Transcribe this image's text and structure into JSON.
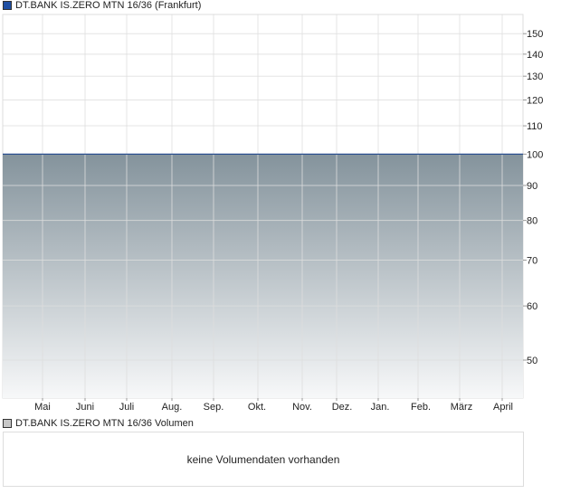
{
  "chart_data": {
    "type": "area",
    "title": "DT.BANK IS.ZERO MTN 16/36 (Frankfurt)",
    "legend_color": "#1f4fa3",
    "line_color": "#2a4f8f",
    "fill_top_color": "#84939c",
    "fill_bottom_color": "#f7f8f9",
    "y_scale": "log",
    "ylim": [
      44,
      160
    ],
    "y_ticks": [
      50,
      60,
      70,
      80,
      90,
      100,
      110,
      120,
      130,
      140,
      150
    ],
    "x_tick_labels": [
      "Mai",
      "Juni",
      "Juli",
      "Aug.",
      "Sep.",
      "Okt.",
      "Nov.",
      "Dez.",
      "Jan.",
      "Feb.",
      "März",
      "April"
    ],
    "series": [
      {
        "values": [
          100,
          100,
          100,
          100,
          100,
          100,
          100,
          100,
          100,
          100,
          100,
          100,
          100,
          100
        ]
      }
    ],
    "grid": true,
    "legend_position": "top-left"
  },
  "volume": {
    "legend": "DT.BANK IS.ZERO MTN 16/36 Volumen",
    "legend_color": "#c8c8c8",
    "message": "keine Volumendaten vorhanden"
  }
}
